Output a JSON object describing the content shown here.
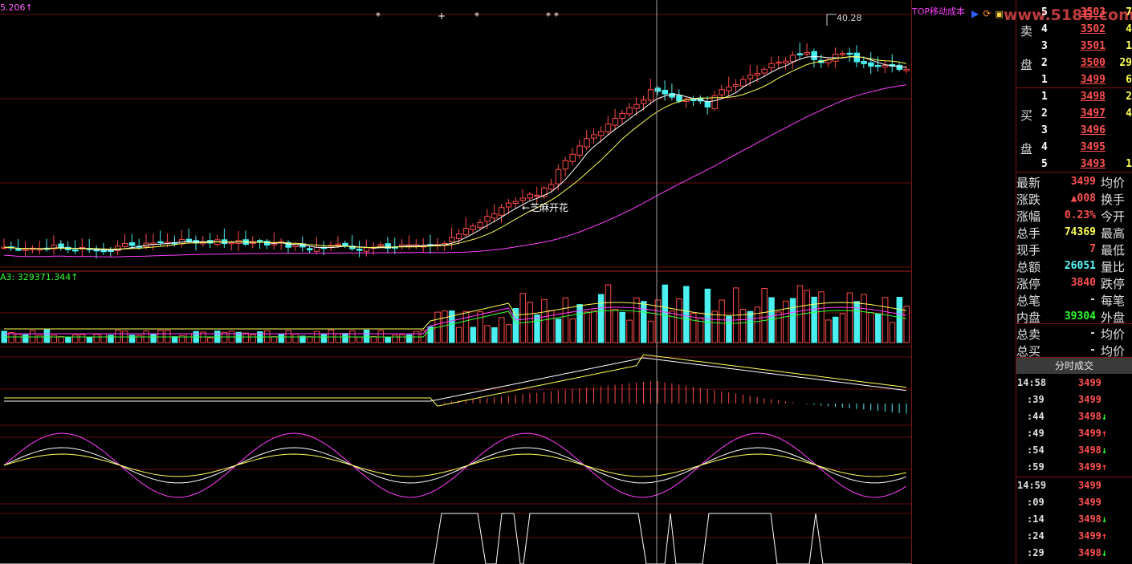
{
  "chart_header": {
    "price_label": "5.206↑",
    "volume_label": "A3: 329371.344↑",
    "peak_label": "40.28",
    "annotation": "←芝麻开花",
    "top_label": "TOP移动成本",
    "markers": [
      "*",
      "+",
      "*",
      "*",
      "*"
    ]
  },
  "order_book": {
    "sell_title_1": "卖",
    "sell_title_2": "盘",
    "buy_title_1": "买",
    "buy_title_2": "盘",
    "sell": [
      {
        "level": "5",
        "price": "3503",
        "vol": "7"
      },
      {
        "level": "4",
        "price": "3502",
        "vol": "4"
      },
      {
        "level": "3",
        "price": "3501",
        "vol": "1"
      },
      {
        "level": "2",
        "price": "3500",
        "vol": "29"
      },
      {
        "level": "1",
        "price": "3499",
        "vol": "6"
      }
    ],
    "buy": [
      {
        "level": "1",
        "price": "3498",
        "vol": "2"
      },
      {
        "level": "2",
        "price": "3497",
        "vol": "4"
      },
      {
        "level": "3",
        "price": "3496",
        "vol": ""
      },
      {
        "level": "4",
        "price": "3495",
        "vol": ""
      },
      {
        "level": "5",
        "price": "3493",
        "vol": "1"
      }
    ]
  },
  "quote": {
    "rows": [
      {
        "l": "最新",
        "v": "3499",
        "r": "均价",
        "c": "red"
      },
      {
        "l": "涨跌",
        "v": "▲008",
        "r": "换手",
        "c": "red"
      },
      {
        "l": "涨幅",
        "v": "0.23%",
        "r": "今开",
        "c": "red"
      },
      {
        "l": "总手",
        "v": "74369",
        "r": "最高",
        "c": "yel"
      },
      {
        "l": "现手",
        "v": "7",
        "r": "最低",
        "c": "red"
      },
      {
        "l": "总额",
        "v": "26051",
        "r": "量比",
        "c": "cyan"
      },
      {
        "l": "涨停",
        "v": "3840",
        "r": "跌停",
        "c": "red"
      },
      {
        "l": "总笔",
        "v": "-",
        "r": "每笔",
        "c": "wht"
      },
      {
        "l": "内盘",
        "v": "39304",
        "r": "外盘",
        "c": "grn"
      },
      {
        "l": "总卖",
        "v": "-",
        "r": "均价",
        "c": "wht"
      },
      {
        "l": "总买",
        "v": "-",
        "r": "均价",
        "c": "wht"
      }
    ]
  },
  "trades": {
    "header": "分时成交",
    "rows": [
      {
        "t": "14:58",
        "p": "3499",
        "a": ""
      },
      {
        "t": ":39",
        "p": "3499",
        "a": ""
      },
      {
        "t": ":44",
        "p": "3498",
        "a": "↓"
      },
      {
        "t": ":49",
        "p": "3499",
        "a": "↑"
      },
      {
        "t": ":54",
        "p": "3498",
        "a": "↓"
      },
      {
        "t": ":59",
        "p": "3499",
        "a": "↑"
      },
      {
        "t": "14:59",
        "p": "3499",
        "a": ""
      },
      {
        "t": ":09",
        "p": "3499",
        "a": ""
      },
      {
        "t": ":14",
        "p": "3498",
        "a": "↓"
      },
      {
        "t": ":24",
        "p": "3499",
        "a": "↑"
      },
      {
        "t": ":29",
        "p": "3498",
        "a": "↓"
      }
    ]
  },
  "watermark": "www.5186.com",
  "colors": {
    "bg": "#000000",
    "grid": "#7a1515",
    "up": "#ff4a4a",
    "down": "#4af0f0",
    "ma_white": "#ffffff",
    "ma_yellow": "#ffff55",
    "ma_magenta": "#ff40ff"
  }
}
